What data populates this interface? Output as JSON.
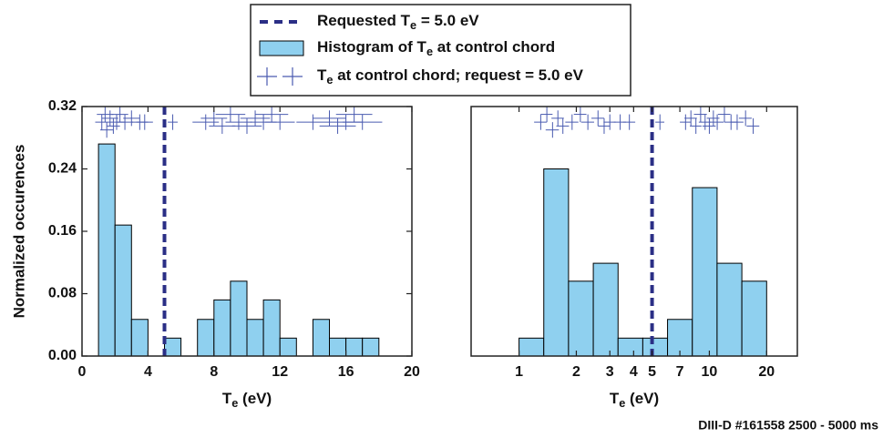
{
  "chart_data": [
    {
      "type": "histogram",
      "bins": [
        1,
        2,
        3,
        4,
        5,
        6,
        7,
        8,
        9,
        10,
        11,
        12,
        13,
        14,
        15,
        16,
        17,
        18
      ],
      "values": [
        0.272,
        0.168,
        0.047,
        0,
        0.023,
        0,
        0.047,
        0.072,
        0.096,
        0.047,
        0.072,
        0.023,
        0,
        0.047,
        0.023,
        0.023,
        0.023
      ],
      "color": "#8fd0ef",
      "edgecolor": "#000000",
      "name": [
        "Histogram of T",
        "e",
        " at control chord"
      ],
      "xlim": [
        0,
        20
      ],
      "xticks": [
        0,
        4,
        8,
        12,
        16,
        20
      ],
      "ylim": [
        0,
        0.32
      ],
      "yticks": [
        {
          "value": 0,
          "label": "0.00"
        },
        {
          "value": 0.08,
          "label": "0.08"
        },
        {
          "value": 0.16,
          "label": "0.16"
        },
        {
          "value": 0.24,
          "label": "0.24"
        },
        {
          "value": 0.32,
          "label": "0.32"
        }
      ],
      "ylabel": "Normalized occurences",
      "xlabel": [
        "T",
        "e",
        " (eV)"
      ],
      "vline": {
        "value": 5.0,
        "color": "#2b2f86",
        "name": [
          "Requested T",
          "e",
          " = 5.0 eV"
        ]
      },
      "points": {
        "name": [
          "T",
          "e",
          " at control chord; request = 5.0 eV"
        ],
        "color": "#4a5bb0",
        "x": [
          1.2,
          1.4,
          1.5,
          1.7,
          1.9,
          2.1,
          2.3,
          2.6,
          3.0,
          3.5,
          3.8,
          5.5,
          7.5,
          8.0,
          8.5,
          9.0,
          9.5,
          10.0,
          10.5,
          11.0,
          11.5,
          12.0,
          14.0,
          15.0,
          15.5,
          16.0,
          16.5,
          17.0
        ],
        "y": [
          0.3,
          0.31,
          0.29,
          0.305,
          0.295,
          0.3,
          0.31,
          0.3,
          0.305,
          0.3,
          0.3,
          0.3,
          0.3,
          0.305,
          0.295,
          0.31,
          0.3,
          0.295,
          0.305,
          0.3,
          0.31,
          0.3,
          0.3,
          0.305,
          0.295,
          0.3,
          0.31,
          0.3
        ],
        "xerr": [
          0.4,
          0.5,
          0.4,
          0.5,
          0.4,
          0.5,
          0.5,
          0.5,
          0.5,
          0.5,
          0.5,
          0.3,
          0.8,
          0.8,
          0.8,
          0.9,
          0.8,
          0.9,
          0.9,
          0.8,
          1.0,
          0.9,
          1.0,
          1.0,
          1.1,
          1.0,
          1.1,
          1.2
        ],
        "yerr": [
          0.01,
          0.01,
          0.01,
          0.01,
          0.01,
          0.01,
          0.01,
          0.01,
          0.01,
          0.01,
          0.01,
          0.01,
          0.01,
          0.01,
          0.01,
          0.01,
          0.01,
          0.01,
          0.01,
          0.01,
          0.01,
          0.01,
          0.01,
          0.01,
          0.01,
          0.01,
          0.01,
          0.01
        ]
      }
    },
    {
      "type": "histogram",
      "log": true,
      "bins": [
        1,
        1.349,
        1.82,
        2.456,
        3.314,
        4.47,
        6.03,
        8.14,
        10.98,
        14.82,
        20
      ],
      "values": [
        0.023,
        0.24,
        0.096,
        0.119,
        0.023,
        0.023,
        0.047,
        0.216,
        0.119,
        0.096
      ],
      "color": "#8fd0ef",
      "edgecolor": "#000000",
      "xlim": [
        0.56,
        29
      ],
      "xticks": [
        1,
        2,
        3,
        4,
        5,
        7,
        10,
        20
      ],
      "ylim": [
        0,
        0.32
      ],
      "xlabel": [
        "T",
        "e",
        " (eV)"
      ],
      "vline": {
        "value": 5.0,
        "color": "#2b2f86"
      },
      "points": {
        "color": "#4a5bb0",
        "x": [
          1.3,
          1.4,
          1.5,
          1.6,
          1.7,
          1.9,
          2.1,
          2.3,
          2.6,
          2.8,
          3.0,
          3.4,
          3.8,
          5.5,
          7.5,
          8.0,
          8.5,
          9.0,
          9.5,
          10.0,
          10.5,
          11.0,
          12.0,
          13.0,
          14.0,
          15.5,
          17.0
        ],
        "y": [
          0.3,
          0.31,
          0.29,
          0.305,
          0.295,
          0.3,
          0.31,
          0.3,
          0.305,
          0.295,
          0.3,
          0.3,
          0.3,
          0.3,
          0.3,
          0.305,
          0.295,
          0.31,
          0.3,
          0.295,
          0.305,
          0.3,
          0.31,
          0.3,
          0.3,
          0.305,
          0.295
        ],
        "xerr": [
          0.1,
          0.1,
          0.12,
          0.12,
          0.13,
          0.15,
          0.16,
          0.18,
          0.2,
          0.2,
          0.22,
          0.25,
          0.28,
          0.3,
          0.5,
          0.6,
          0.6,
          0.7,
          0.7,
          0.8,
          0.8,
          0.9,
          0.9,
          1.0,
          1.1,
          1.2,
          1.3
        ],
        "yerr": [
          0.01,
          0.01,
          0.01,
          0.01,
          0.01,
          0.01,
          0.01,
          0.01,
          0.01,
          0.01,
          0.01,
          0.01,
          0.01,
          0.01,
          0.01,
          0.01,
          0.01,
          0.01,
          0.01,
          0.01,
          0.01,
          0.01,
          0.01,
          0.01,
          0.01,
          0.01,
          0.01
        ]
      }
    }
  ],
  "footer": "DIII-D #161558 2500 - 5000 ms"
}
